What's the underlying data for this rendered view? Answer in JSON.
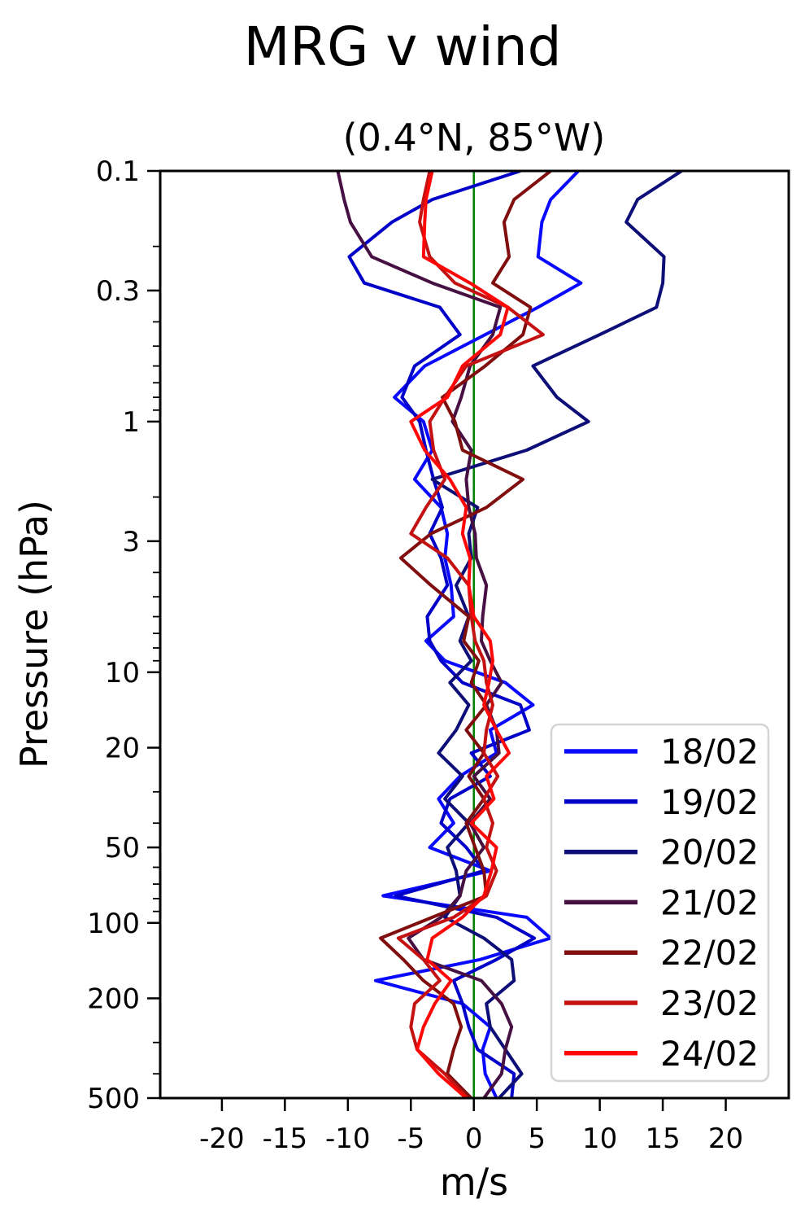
{
  "figure": {
    "title": "MRG v wind",
    "subtitle": "(0.4°N, 85°W)",
    "xlabel": "m/s",
    "ylabel": "Pressure (hPa)"
  },
  "axes": {
    "xlim": [
      -24.9,
      25.0
    ],
    "ylim_top_hPa": 0.1,
    "ylim_bottom_hPa": 500,
    "y_scale": "log-inverted",
    "x_ticks": [
      {
        "value": -20,
        "label": "-20"
      },
      {
        "value": -15,
        "label": "-15"
      },
      {
        "value": -10,
        "label": "-10"
      },
      {
        "value": -5,
        "label": "-5"
      },
      {
        "value": 0,
        "label": "0"
      },
      {
        "value": 5,
        "label": "5"
      },
      {
        "value": 10,
        "label": "10"
      },
      {
        "value": 15,
        "label": "15"
      },
      {
        "value": 20,
        "label": "20"
      }
    ],
    "y_ticks": [
      {
        "value": 0.1,
        "label": "0.1"
      },
      {
        "value": 0.3,
        "label": "0.3"
      },
      {
        "value": 1,
        "label": "1"
      },
      {
        "value": 3,
        "label": "3"
      },
      {
        "value": 10,
        "label": "10"
      },
      {
        "value": 20,
        "label": "20"
      },
      {
        "value": 50,
        "label": "50"
      },
      {
        "value": 100,
        "label": "100"
      },
      {
        "value": 200,
        "label": "200"
      },
      {
        "value": 500,
        "label": "500"
      }
    ],
    "grid": false
  },
  "zero_line": {
    "x": 0,
    "color": "#008000"
  },
  "legend": {
    "position": "lower-right",
    "border_color": "#d4d4d4",
    "background": "#ffffff"
  },
  "chart_data": {
    "type": "line",
    "title": "MRG v wind",
    "subtitle": "(0.4°N, 85°W)",
    "xlabel": "m/s",
    "ylabel": "Pressure (hPa)",
    "x_range_m_s": [
      -24.9,
      25.0
    ],
    "y_range_hPa": [
      0.1,
      500
    ],
    "pressure_levels_hPa": [
      0.1,
      0.13,
      0.16,
      0.22,
      0.28,
      0.35,
      0.45,
      0.6,
      0.8,
      1.0,
      1.3,
      1.7,
      2.2,
      2.8,
      3.5,
      4.5,
      6,
      7.5,
      9,
      11,
      13.5,
      17,
      21,
      26,
      32,
      40,
      50,
      62,
      78,
      95,
      115,
      140,
      170,
      210,
      260,
      320,
      400,
      500
    ],
    "series": [
      {
        "name": "18/02",
        "color": "#0909ff",
        "values": [
          8.3,
          6.1,
          5.4,
          5.1,
          8.5,
          5.1,
          0.9,
          -3.9,
          -6.3,
          -4.0,
          -3.3,
          -4.7,
          -2.6,
          -2.1,
          -2.3,
          -1.8,
          -1.6,
          -3.8,
          -2.3,
          2.5,
          4.7,
          1.3,
          1.8,
          -1.1,
          -2.8,
          -1.6,
          -3.5,
          1.3,
          -7.2,
          4.2,
          6.1,
          0.5,
          -7.8,
          -0.9,
          1.3,
          0.7,
          0.9,
          1.8
        ]
      },
      {
        "name": "19/02",
        "color": "#0000c8",
        "values": [
          3.7,
          -3.3,
          -6.5,
          -9.9,
          -8.7,
          -2.7,
          -1.1,
          -4.7,
          -5.7,
          -4.3,
          -3.8,
          -3.2,
          -2.5,
          -3.5,
          -2.6,
          -2.1,
          -3.7,
          -3.5,
          -2.6,
          -0.9,
          3.7,
          4.4,
          -0.2,
          1.3,
          -1.9,
          -2.6,
          -0.6,
          0.8,
          -6.2,
          1.8,
          4.8,
          1.8,
          -1.6,
          -0.9,
          -0.4,
          0.3,
          3.2,
          3.0
        ]
      },
      {
        "name": "20/02",
        "color": "#0e0e78",
        "values": [
          16.5,
          13.0,
          12.1,
          15.1,
          15.0,
          14.5,
          10.0,
          4.7,
          6.6,
          9.1,
          4.2,
          -3.3,
          0.3,
          -0.4,
          -0.2,
          -1.4,
          -0.4,
          -1.1,
          -0.2,
          -1.9,
          -0.4,
          -1.4,
          -2.8,
          -0.9,
          -2.3,
          -0.4,
          -2.1,
          -1.4,
          -1.1,
          -2.3,
          0.8,
          3.0,
          3.2,
          1.0,
          1.3,
          2.5,
          3.8,
          2.0
        ]
      },
      {
        "name": "21/02",
        "color": "#471043",
        "values": [
          -10.8,
          -10.3,
          -9.8,
          -8.1,
          -3.3,
          2.1,
          1.5,
          -0.3,
          -1.0,
          -1.7,
          -0.2,
          -0.6,
          -0.4,
          0.1,
          0.2,
          1.0,
          0.7,
          0.6,
          1.3,
          2.2,
          1.0,
          1.8,
          2.0,
          0.0,
          1.3,
          -0.3,
          0.8,
          -0.6,
          -1.1,
          -2.6,
          -5.2,
          -4.0,
          0.6,
          2.2,
          3.0,
          2.5,
          2.2,
          0.8
        ]
      },
      {
        "name": "22/02",
        "color": "#800e0e",
        "values": [
          6.1,
          3.2,
          2.4,
          2.8,
          1.5,
          4.5,
          3.9,
          0.9,
          -2.5,
          -1.5,
          -0.9,
          3.9,
          1.0,
          -3.4,
          -5.8,
          -3.4,
          -0.4,
          -0.8,
          0.4,
          -0.2,
          1.0,
          -0.6,
          0.8,
          -0.4,
          0.8,
          -0.6,
          0.1,
          0.8,
          1.0,
          -3.3,
          -7.4,
          -5.6,
          -4.0,
          -1.6,
          -1.0,
          -1.6,
          -2.1,
          -0.2
        ]
      },
      {
        "name": "23/02",
        "color": "#c41111",
        "values": [
          -3.5,
          -4.0,
          -4.3,
          -3.5,
          -1.5,
          2.7,
          5.5,
          -0.6,
          -2.3,
          -3.5,
          -3.2,
          -2.3,
          -3.8,
          -5.0,
          -2.1,
          -0.4,
          -0.2,
          0.1,
          0.8,
          1.0,
          1.5,
          1.0,
          0.8,
          1.9,
          0.8,
          1.5,
          1.0,
          1.8,
          1.0,
          -1.6,
          -6.0,
          -4.0,
          -2.7,
          -4.7,
          -5.0,
          -4.5,
          -2.3,
          -0.5
        ]
      },
      {
        "name": "24/02",
        "color": "#ff0707",
        "values": [
          -3.3,
          -3.8,
          -3.9,
          -4.0,
          -0.3,
          2.7,
          2.1,
          -0.9,
          -2.1,
          -5.0,
          -3.9,
          -1.9,
          -0.6,
          -0.9,
          -0.3,
          -0.4,
          0.0,
          1.3,
          1.5,
          1.2,
          0.8,
          1.8,
          2.8,
          1.0,
          1.6,
          -0.2,
          1.8,
          1.4,
          0.8,
          -0.9,
          -3.3,
          -3.7,
          -1.8,
          -3.1,
          -4.0,
          -4.5,
          -2.8,
          -0.6
        ]
      }
    ],
    "annotations": [
      {
        "type": "vline",
        "x": 0,
        "color": "#008000"
      }
    ],
    "legend_position": "lower-right"
  }
}
